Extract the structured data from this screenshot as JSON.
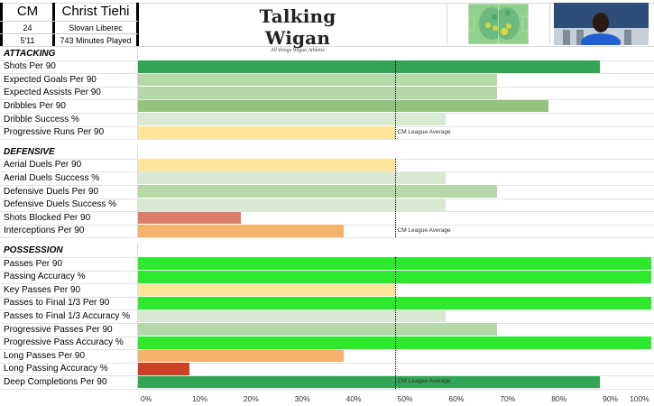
{
  "header": {
    "position": "CM",
    "player_name": "Christ Tiehi",
    "age": "24",
    "club": "Slovan Liberec",
    "height": "5'11",
    "minutes": "743 Minutes Played",
    "brand_title": "Talking Wigan",
    "brand_subtitle": "All things Wigan Athletic",
    "heatmap_icon": "heatmap-image",
    "photo_icon": "player-photo"
  },
  "average_label": "CM League Average",
  "colors": {
    "dark_green": "#33a655",
    "bright_green": "#2ee82e",
    "mid_green": "#93c47d",
    "light_green": "#b6d7a8",
    "pale_green": "#d9ead3",
    "pale_yellow": "#ffe599",
    "orange": "#f6b26b",
    "salmon": "#dd7e6b",
    "red": "#cc4125"
  },
  "chart_data": {
    "type": "bar",
    "orientation": "horizontal",
    "title": "Talking Wigan - Christ Tiehi (CM) percentile ranks",
    "xlabel": "",
    "ylabel": "",
    "xlim": [
      0,
      100
    ],
    "x_ticks": [
      "0%",
      "10%",
      "20%",
      "30%",
      "40%",
      "50%",
      "60%",
      "70%",
      "80%",
      "90%",
      "100%"
    ],
    "reference_line": {
      "value": 50,
      "label": "CM League Average"
    },
    "grid": false,
    "sections": [
      {
        "name": "ATTACKING",
        "metrics": [
          {
            "label": "Shots Per 90",
            "value": 90,
            "color": "#33a655"
          },
          {
            "label": "Expected Goals Per 90",
            "value": 70,
            "color": "#b6d7a8"
          },
          {
            "label": "Expected Assists Per 90",
            "value": 70,
            "color": "#b6d7a8"
          },
          {
            "label": "Dribbles Per 90",
            "value": 80,
            "color": "#93c47d"
          },
          {
            "label": "Dribble Success %",
            "value": 60,
            "color": "#d9ead3"
          },
          {
            "label": "Progressive Runs Per 90",
            "value": 50,
            "color": "#ffe599"
          }
        ]
      },
      {
        "name": "DEFENSIVE",
        "metrics": [
          {
            "label": "Aerial Duels Per 90",
            "value": 50,
            "color": "#ffe599"
          },
          {
            "label": "Aerial Duels Success %",
            "value": 60,
            "color": "#d9ead3"
          },
          {
            "label": "Defensive Duels Per 90",
            "value": 70,
            "color": "#b6d7a8"
          },
          {
            "label": "Defensive Duels Success %",
            "value": 60,
            "color": "#d9ead3"
          },
          {
            "label": "Shots Blocked Per 90",
            "value": 20,
            "color": "#dd7e6b"
          },
          {
            "label": "Interceptions Per 90",
            "value": 40,
            "color": "#f6b26b"
          }
        ]
      },
      {
        "name": "POSSESSION",
        "metrics": [
          {
            "label": "Passes Per 90",
            "value": 100,
            "color": "#2ee82e"
          },
          {
            "label": "Passing Accuracy %",
            "value": 100,
            "color": "#2ee82e"
          },
          {
            "label": "Key Passes Per 90",
            "value": 50,
            "color": "#ffe599"
          },
          {
            "label": "Passes to Final 1/3 Per 90",
            "value": 100,
            "color": "#2ee82e"
          },
          {
            "label": "Passes to Final 1/3 Accuracy %",
            "value": 60,
            "color": "#d9ead3"
          },
          {
            "label": "Progressive Passes Per 90",
            "value": 70,
            "color": "#b6d7a8"
          },
          {
            "label": "Progressive Pass Accuracy %",
            "value": 100,
            "color": "#2ee82e"
          },
          {
            "label": "Long Passes Per 90",
            "value": 40,
            "color": "#f6b26b"
          },
          {
            "label": "Long Passing Accuracy %",
            "value": 10,
            "color": "#cc4125"
          },
          {
            "label": "Deep Completions Per 90",
            "value": 90,
            "color": "#33a655"
          }
        ]
      }
    ]
  }
}
